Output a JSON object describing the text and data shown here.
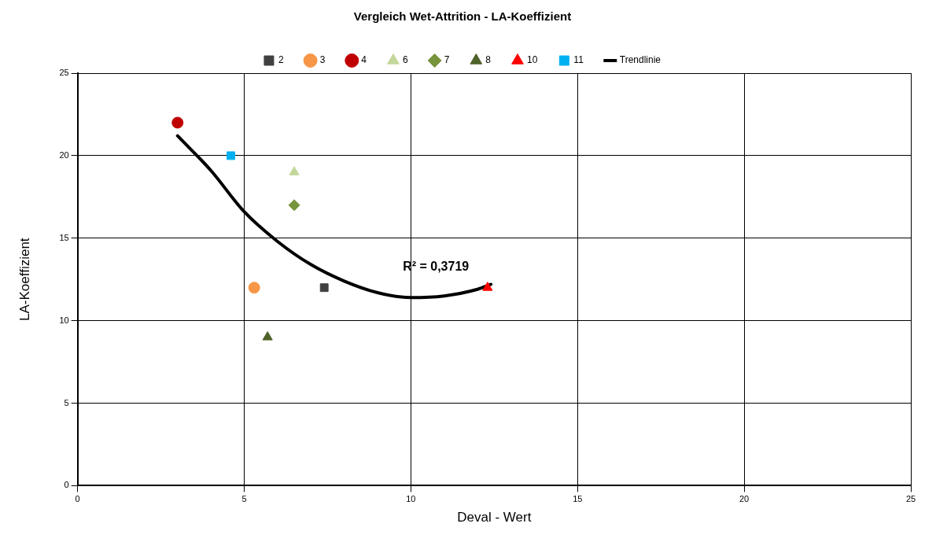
{
  "chart_data": {
    "type": "scatter",
    "title": "Vergleich Wet-Attrition - LA-Koeffizient",
    "xlabel": "Deval - Wert",
    "ylabel": "LA-Koeffizient",
    "xlim": [
      0,
      25
    ],
    "xticks": [
      0,
      5,
      10,
      15,
      20,
      25
    ],
    "ylim": [
      0,
      25
    ],
    "yticks": [
      0,
      5,
      10,
      15,
      20,
      25
    ],
    "grid": true,
    "legend": "top",
    "series": [
      {
        "name": "2",
        "color": "#404040",
        "marker": "square",
        "x": [
          7.4
        ],
        "values": [
          12
        ]
      },
      {
        "name": "3",
        "color": "#f79646",
        "marker": "circle",
        "x": [
          5.3
        ],
        "values": [
          12
        ]
      },
      {
        "name": "4",
        "color": "#c00000",
        "marker": "circle",
        "x": [
          3.0
        ],
        "values": [
          22
        ]
      },
      {
        "name": "6",
        "color": "#c4d79b",
        "marker": "triangle",
        "x": [
          6.5
        ],
        "values": [
          19
        ]
      },
      {
        "name": "7",
        "color": "#77933c",
        "marker": "diamond",
        "x": [
          6.5
        ],
        "values": [
          17
        ]
      },
      {
        "name": "8",
        "color": "#4f6228",
        "marker": "triangle",
        "x": [
          5.7
        ],
        "values": [
          9
        ]
      },
      {
        "name": "10",
        "color": "#ff0000",
        "marker": "triangle",
        "x": [
          12.3
        ],
        "values": [
          12
        ]
      },
      {
        "name": "11",
        "color": "#00b0f0",
        "marker": "square",
        "x": [
          4.6
        ],
        "values": [
          20
        ]
      },
      {
        "name": "Trendlinie",
        "type": "line",
        "color": "#000000",
        "marker": "none",
        "x": [
          3.0,
          4.0,
          5.0,
          6.0,
          7.0,
          8.0,
          9.0,
          10.0,
          11.0,
          12.0,
          12.4
        ],
        "values": [
          21.2,
          19.1,
          16.6,
          14.8,
          13.4,
          12.4,
          11.7,
          11.4,
          11.5,
          11.9,
          12.2
        ]
      }
    ],
    "annotations": [
      "R² = 0,3719"
    ]
  }
}
